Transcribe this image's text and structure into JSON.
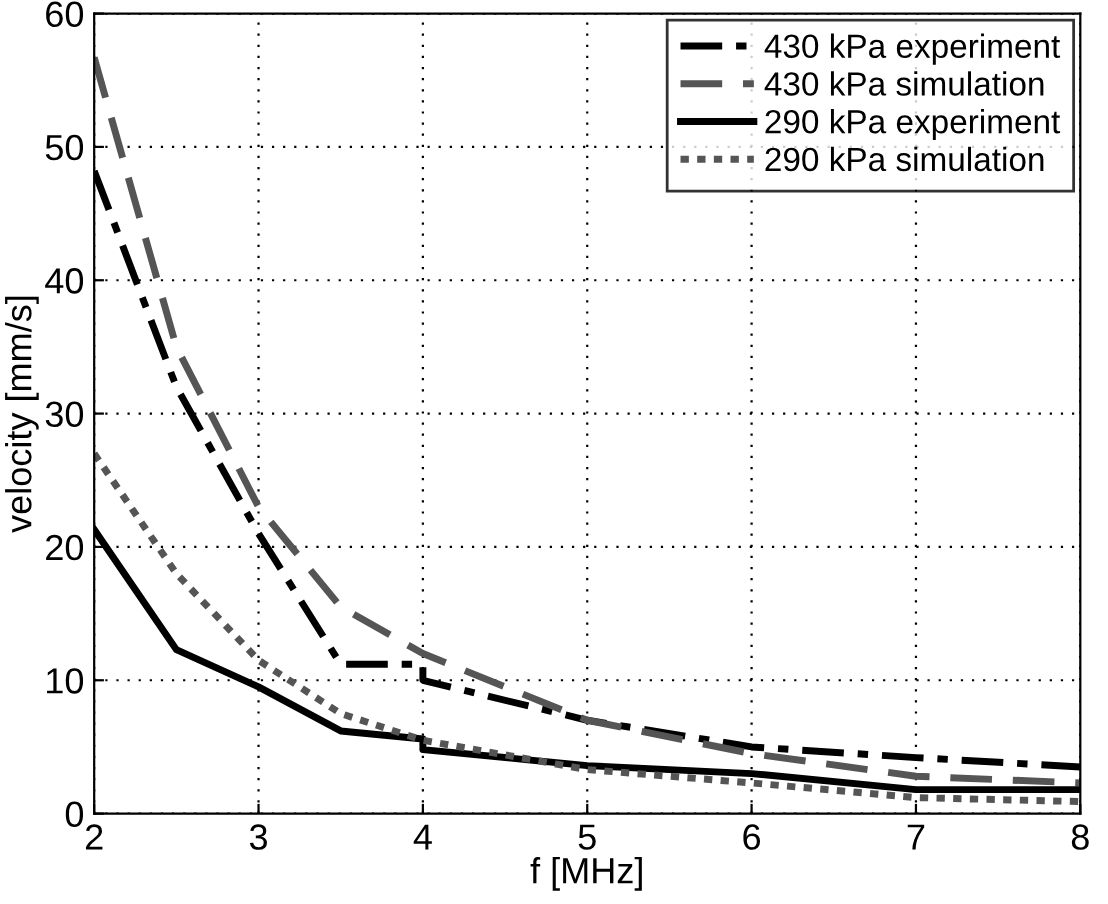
{
  "chart_data": {
    "type": "line",
    "xlabel": "f [MHz]",
    "ylabel": "velocity [mm/s]",
    "xlim": [
      2,
      8
    ],
    "ylim": [
      0,
      60
    ],
    "xticks": [
      2,
      3,
      4,
      5,
      6,
      7,
      8
    ],
    "yticks": [
      0,
      10,
      20,
      30,
      40,
      50,
      60
    ],
    "grid": true,
    "legend": "top right",
    "marker": "none",
    "series": [
      {
        "name": "430 kPa experiment",
        "color": "#000000",
        "line_style": "dashdot",
        "x": [
          2,
          2.5,
          3,
          3.5,
          4,
          4,
          5,
          6,
          7,
          8
        ],
        "values": [
          48.2,
          32,
          21,
          11.2,
          11.2,
          10,
          7,
          5,
          4.2,
          3.5
        ]
      },
      {
        "name": "430 kPa simulation",
        "color": "#555555",
        "line_style": "dashed",
        "x": [
          2,
          2.5,
          3,
          3.5,
          4,
          5,
          6,
          7,
          8
        ],
        "values": [
          56.7,
          35,
          23,
          15.5,
          12,
          7,
          4.5,
          2.8,
          2.3
        ]
      },
      {
        "name": "290 kPa experiment",
        "color": "#000000",
        "line_style": "solid",
        "x": [
          2,
          2.5,
          3,
          3.5,
          4,
          4,
          5,
          6,
          7,
          8
        ],
        "values": [
          21.3,
          12.3,
          9.5,
          6.2,
          5.6,
          4.8,
          3.6,
          3.0,
          1.8,
          1.8
        ]
      },
      {
        "name": "290 kPa simulation",
        "color": "#555555",
        "line_style": "dotted",
        "x": [
          2,
          2.5,
          3,
          3.5,
          4,
          5,
          6,
          7,
          8
        ],
        "values": [
          27,
          18,
          11.5,
          7.5,
          5.5,
          3.3,
          2.3,
          1.2,
          0.9
        ]
      }
    ]
  }
}
